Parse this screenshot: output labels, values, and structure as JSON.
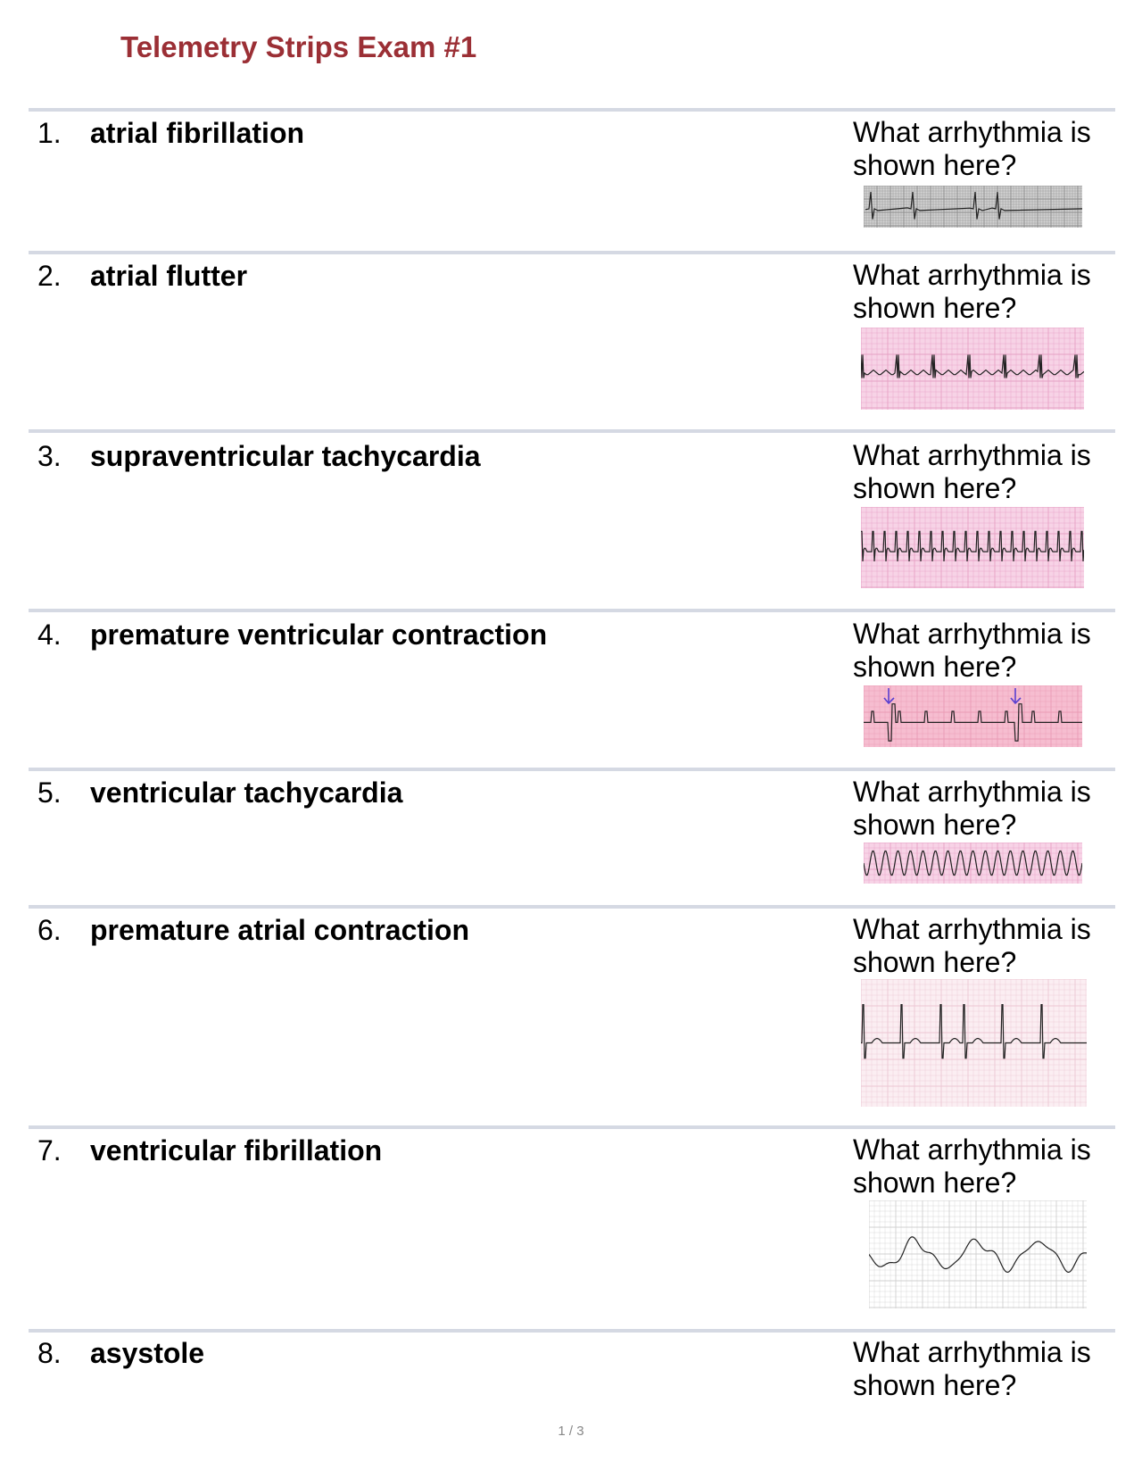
{
  "title": "Telemetry Strips Exam #1",
  "items": [
    {
      "number": "1.",
      "answer": "atrial fibrillation",
      "question": "What arrhythmia is shown here?",
      "strip": "atrial-fibrillation-ecg-strip"
    },
    {
      "number": "2.",
      "answer": "atrial flutter",
      "question": "What arrhythmia is shown here?",
      "strip": "atrial-flutter-ecg-strip"
    },
    {
      "number": "3.",
      "answer": "supraventricular tachycardia",
      "question": "What arrhythmia is shown here?",
      "strip": "svt-ecg-strip"
    },
    {
      "number": "4.",
      "answer": "premature ventricular contraction",
      "question": "What arrhythmia is shown here?",
      "strip": "pvc-ecg-strip"
    },
    {
      "number": "5.",
      "answer": "ventricular tachycardia",
      "question": "What arrhythmia is shown here?",
      "strip": "vtach-ecg-strip"
    },
    {
      "number": "6.",
      "answer": "premature atrial contraction",
      "question": "What arrhythmia is shown here?",
      "strip": "pac-ecg-strip"
    },
    {
      "number": "7.",
      "answer": "ventricular fibrillation",
      "question": "What arrhythmia is shown here?",
      "strip": "vfib-ecg-strip"
    },
    {
      "number": "8.",
      "answer": "asystole",
      "question": "What arrhythmia is shown here?"
    }
  ],
  "page_indicator": "1 / 3",
  "colors": {
    "title": "#9b2f35",
    "rule": "#d5d9e3",
    "grid_pink": "#f3c6dc",
    "grid_gray": "#9a9a9a",
    "pvc_arrow": "#5a3fd0"
  }
}
